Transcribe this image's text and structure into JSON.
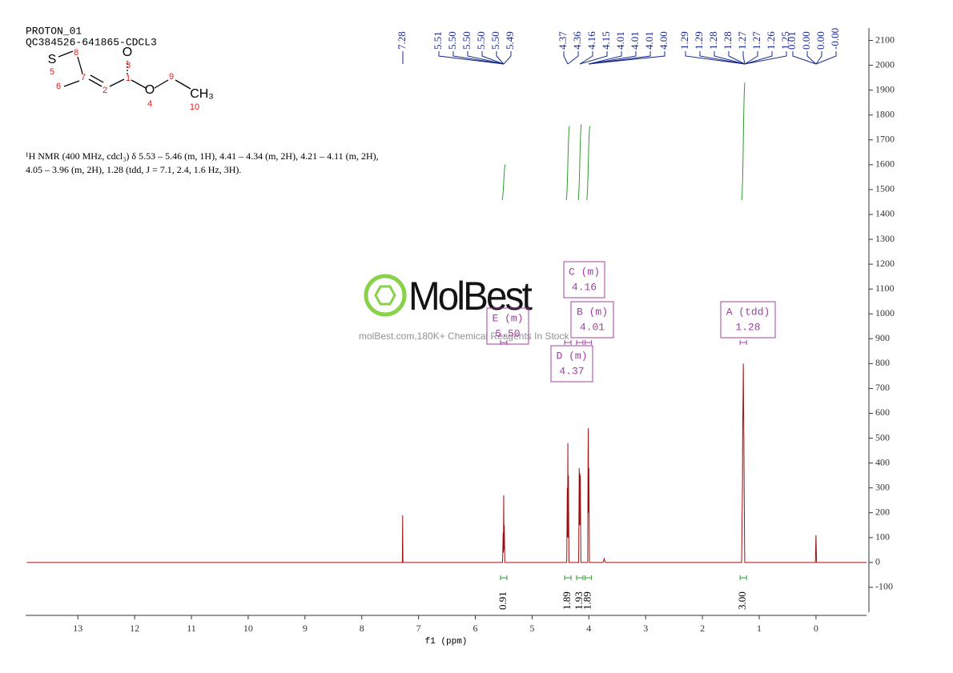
{
  "chart_data": {
    "type": "line",
    "title": "PROTON_01",
    "subtitle": "QC384526-641865-CDCL3",
    "description": [
      "¹H NMR (400 MHz, cdcl₃) δ 5.53 – 5.46 (m, 1H), 4.41 – 4.34 (m, 2H), 4.21 – 4.11 (m, 2H),",
      "4.05 – 3.96 (m, 2H), 1.28 (tdd, J = 7.1, 2.4, 1.6 Hz, 3H)."
    ],
    "structure": {
      "atoms": [
        "S",
        "8",
        "5",
        "7",
        "6",
        "2",
        "O",
        "3",
        "1",
        "O",
        "9",
        "4",
        "CH₃",
        "10"
      ]
    },
    "xlabel": "f1 (ppm)",
    "xlim": [
      13.92,
      -0.89
    ],
    "xticks": [
      13,
      12,
      11,
      10,
      9,
      8,
      7,
      6,
      5,
      4,
      3,
      2,
      1,
      0
    ],
    "ylim": [
      -200,
      2150
    ],
    "yticks": [
      -100,
      0,
      100,
      200,
      300,
      400,
      500,
      600,
      700,
      800,
      900,
      1000,
      1100,
      1200,
      1300,
      1400,
      1500,
      1600,
      1700,
      1800,
      1900,
      2000,
      2100
    ],
    "x": [
      13.9,
      7.3,
      7.285,
      7.28,
      7.275,
      5.52,
      5.51,
      5.505,
      5.5,
      5.495,
      5.49,
      5.48,
      4.39,
      4.38,
      4.375,
      4.37,
      4.365,
      4.36,
      4.35,
      4.18,
      4.17,
      4.165,
      4.16,
      4.155,
      4.15,
      4.14,
      4.02,
      4.015,
      4.01,
      4.005,
      4.0,
      3.99,
      3.75,
      3.73,
      3.71,
      1.31,
      1.295,
      1.29,
      1.285,
      1.28,
      1.275,
      1.27,
      1.265,
      1.255,
      0.01,
      0.0,
      -0.01,
      -0.89
    ],
    "series": [
      {
        "color": "#9b1010",
        "values": [
          0,
          0,
          0,
          190,
          0,
          0,
          120,
          40,
          270,
          50,
          150,
          0,
          0,
          300,
          100,
          480,
          100,
          350,
          0,
          0,
          380,
          150,
          360,
          150,
          350,
          0,
          0,
          400,
          540,
          200,
          380,
          0,
          0,
          15,
          0,
          0,
          300,
          550,
          650,
          800,
          620,
          500,
          300,
          0,
          0,
          110,
          0,
          0
        ]
      }
    ],
    "peak_labels": [
      "7.28",
      "5.51",
      "5.50",
      "5.50",
      "5.50",
      "5.50",
      "5.49",
      "4.37",
      "4.36",
      "4.16",
      "4.15",
      "4.01",
      "4.01",
      "4.01",
      "4.00",
      "1.29",
      "1.29",
      "1.28",
      "1.28",
      "1.27",
      "1.27",
      "1.26",
      "1.25",
      "0.01",
      "0.00",
      "0.00",
      "-0.00"
    ],
    "integrals": {
      "x": [
        5.5,
        4.37,
        4.16,
        4.01,
        1.28
      ],
      "values": [
        0.91,
        1.89,
        1.93,
        1.89,
        3
      ],
      "value_labels": [
        "0.91",
        "1.89",
        "1.93",
        "1.89",
        "3.00"
      ],
      "color": "#2e9a2e"
    },
    "multiplets": {
      "names": [
        "A (tdd)",
        "B (m)",
        "C (m)",
        "D (m)",
        "E (m)"
      ],
      "shifts": [
        1.28,
        4.01,
        4.16,
        4.37,
        5.5
      ],
      "shift_labels": [
        "1.28",
        "4.01",
        "4.16",
        "4.37",
        "5.50"
      ],
      "color": "#a040a0"
    },
    "watermark": {
      "logo": "MolBest",
      "tagline": "molBest.com,180K+ Chemical Reagents In Stock"
    }
  }
}
